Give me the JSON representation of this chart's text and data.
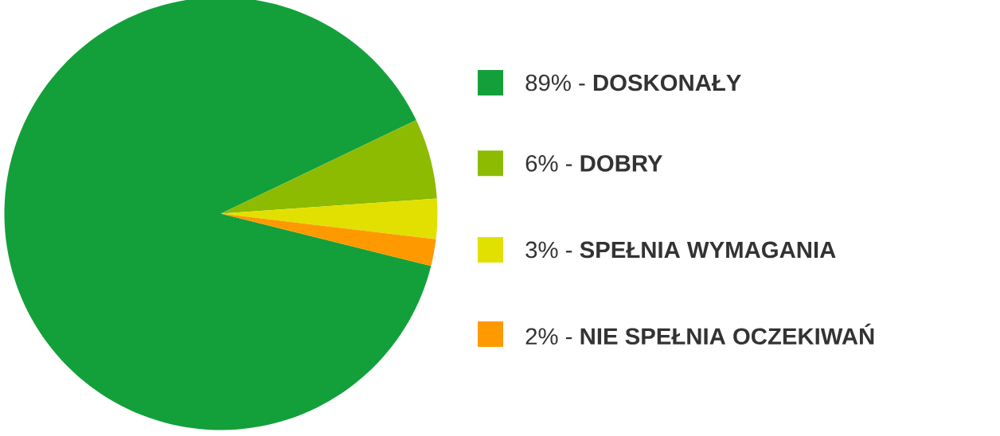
{
  "chart_data": {
    "type": "pie",
    "categories": [
      "89% - **DOSKONAŁY**",
      "6% - **DOBRY**",
      "3% - **SPEŁNIA WYMAGANIA**",
      "2% - **NIE SPEŁNIA OCZEKIWAŃ**"
    ],
    "values": [
      89,
      6,
      3,
      2
    ],
    "colors": [
      "#13a03a",
      "#8dbb02",
      "#e2e000",
      "#ff9900"
    ],
    "legend": "right"
  }
}
